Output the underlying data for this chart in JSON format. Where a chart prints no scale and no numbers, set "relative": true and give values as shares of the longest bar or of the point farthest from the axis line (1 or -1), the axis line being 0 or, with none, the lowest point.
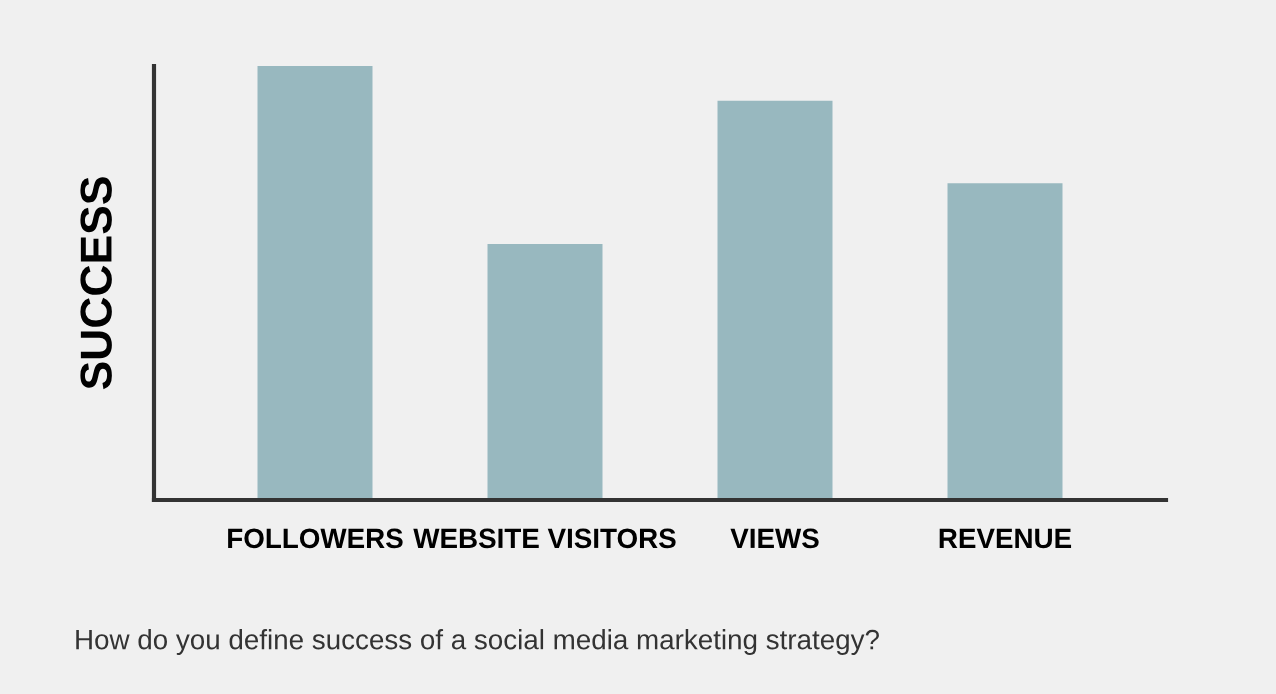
{
  "chart_data": {
    "type": "bar",
    "relative": true,
    "ylabel": "SUCCESS",
    "categories": [
      "FOLLOWERS",
      "WEBSITE VISITORS",
      "VIEWS",
      "REVENUE"
    ],
    "values": [
      1,
      0.59,
      0.92,
      0.73
    ],
    "color": "#98b8bf",
    "grid": false,
    "legend": false,
    "annotations": [
      "How do you define success of a social media marketing strategy?"
    ]
  }
}
